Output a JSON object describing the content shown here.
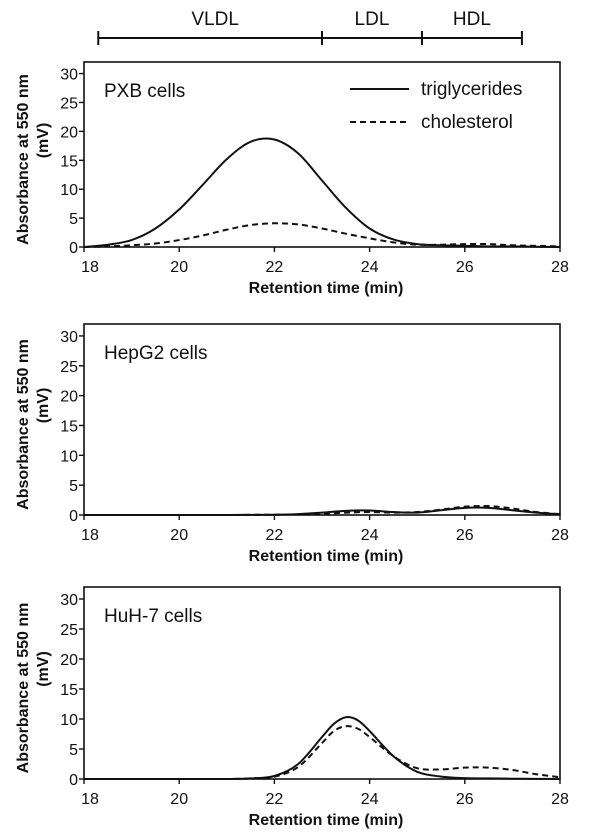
{
  "fractions": [
    {
      "name": "VLDL",
      "start": 18.3,
      "end": 23.0
    },
    {
      "name": "LDL",
      "start": 23.0,
      "end": 25.1
    },
    {
      "name": "HDL",
      "start": 25.1,
      "end": 27.2
    }
  ],
  "legend": {
    "triglycerides": "triglycerides",
    "cholesterol": "cholesterol"
  },
  "chart_data": [
    {
      "type": "line",
      "title": "PXB cells",
      "xlabel": "Retention time (min)",
      "ylabel": "Absorbance at 550 nm (mV)",
      "xlim": [
        18,
        28
      ],
      "ylim": [
        0,
        32
      ],
      "xticks": [
        18,
        20,
        22,
        24,
        26,
        28
      ],
      "yticks": [
        0,
        5,
        10,
        15,
        20,
        25,
        30
      ],
      "series": [
        {
          "name": "triglycerides",
          "style": "solid",
          "x": [
            18,
            18.5,
            19,
            19.5,
            20,
            20.5,
            21,
            21.5,
            22,
            22.5,
            23,
            23.5,
            24,
            24.5,
            25,
            25.5,
            26,
            26.5,
            27,
            27.5,
            28
          ],
          "y": [
            0,
            0.4,
            1.2,
            3.2,
            6.5,
            10.8,
            15.2,
            18.2,
            18.6,
            16.2,
            11.5,
            6.8,
            3.2,
            1.3,
            0.5,
            0.3,
            0.2,
            0.1,
            0.1,
            0.05,
            0
          ]
        },
        {
          "name": "cholesterol",
          "style": "dashed",
          "x": [
            18,
            18.5,
            19,
            19.5,
            20,
            20.5,
            21,
            21.5,
            22,
            22.5,
            23,
            23.5,
            24,
            24.5,
            25,
            25.5,
            26,
            26.5,
            27,
            27.5,
            28
          ],
          "y": [
            0,
            0.1,
            0.3,
            0.6,
            1.2,
            2.0,
            3.0,
            3.8,
            4.1,
            3.9,
            3.2,
            2.3,
            1.5,
            0.8,
            0.4,
            0.4,
            0.5,
            0.5,
            0.3,
            0.2,
            0.1
          ]
        }
      ]
    },
    {
      "type": "line",
      "title": "HepG2 cells",
      "xlabel": "Retention time (min)",
      "ylabel": "Absorbance at 550 nm (mV)",
      "xlim": [
        18,
        28
      ],
      "ylim": [
        0,
        32
      ],
      "xticks": [
        18,
        20,
        22,
        24,
        26,
        28
      ],
      "yticks": [
        0,
        5,
        10,
        15,
        20,
        25,
        30
      ],
      "series": [
        {
          "name": "triglycerides",
          "style": "solid",
          "x": [
            18,
            19,
            20,
            21,
            22,
            22.5,
            23,
            23.5,
            24,
            24.5,
            25,
            25.5,
            26,
            26.5,
            27,
            27.5,
            28
          ],
          "y": [
            0,
            0,
            0,
            0,
            0.05,
            0.15,
            0.4,
            0.7,
            0.75,
            0.5,
            0.4,
            0.8,
            1.2,
            1.2,
            0.8,
            0.4,
            0.1
          ]
        },
        {
          "name": "cholesterol",
          "style": "dashed",
          "x": [
            18,
            19,
            20,
            21,
            22,
            22.5,
            23,
            23.5,
            24,
            24.5,
            25,
            25.5,
            26,
            26.5,
            27,
            27.5,
            28
          ],
          "y": [
            0,
            0,
            0,
            0,
            0.05,
            0.1,
            0.2,
            0.4,
            0.5,
            0.4,
            0.5,
            0.9,
            1.4,
            1.5,
            1.1,
            0.5,
            0.15
          ]
        }
      ]
    },
    {
      "type": "line",
      "title": "HuH-7 cells",
      "xlabel": "Retention time (min)",
      "ylabel": "Absorbance at 550 nm (mV)",
      "xlim": [
        18,
        28
      ],
      "ylim": [
        0,
        32
      ],
      "xticks": [
        18,
        20,
        22,
        24,
        26,
        28
      ],
      "yticks": [
        0,
        5,
        10,
        15,
        20,
        25,
        30
      ],
      "series": [
        {
          "name": "triglycerides",
          "style": "solid",
          "x": [
            18,
            19,
            20,
            21,
            21.5,
            22,
            22.5,
            23,
            23.25,
            23.5,
            23.75,
            24,
            24.5,
            25,
            25.5,
            26,
            26.5,
            27,
            27.5,
            28
          ],
          "y": [
            0,
            0,
            0,
            0,
            0.1,
            0.5,
            2.5,
            7.0,
            9.2,
            10.3,
            9.8,
            8.0,
            3.8,
            1.2,
            0.4,
            0.15,
            0.1,
            0.05,
            0.02,
            0
          ]
        },
        {
          "name": "cholesterol",
          "style": "dashed",
          "x": [
            18,
            19,
            20,
            21,
            21.5,
            22,
            22.5,
            23,
            23.25,
            23.5,
            23.75,
            24,
            24.5,
            25,
            25.5,
            26,
            26.5,
            27,
            27.5,
            28
          ],
          "y": [
            0,
            0,
            0,
            0,
            0.1,
            0.4,
            2.0,
            6.0,
            8.0,
            8.8,
            8.4,
            7.0,
            3.8,
            1.8,
            1.6,
            1.9,
            1.9,
            1.5,
            0.8,
            0.3
          ]
        }
      ]
    }
  ]
}
